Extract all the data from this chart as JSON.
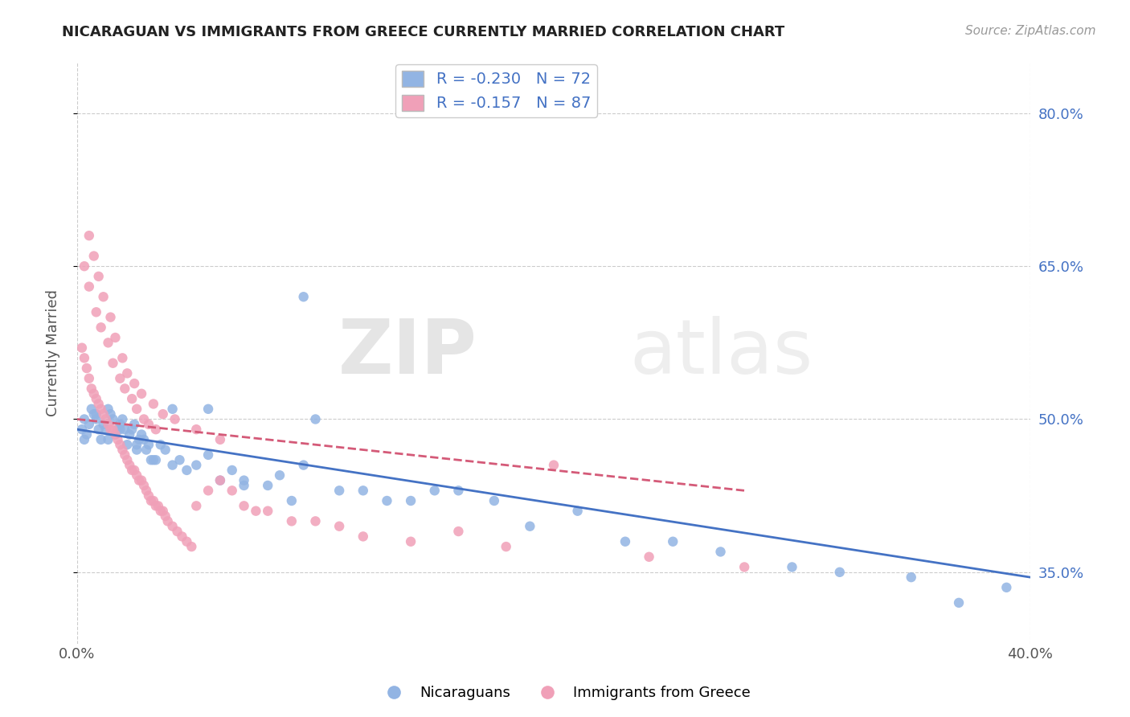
{
  "title": "NICARAGUAN VS IMMIGRANTS FROM GREECE CURRENTLY MARRIED CORRELATION CHART",
  "source_text": "Source: ZipAtlas.com",
  "ylabel": "Currently Married",
  "xmin": 0.0,
  "xmax": 0.4,
  "ymin": 0.28,
  "ymax": 0.85,
  "yticks": [
    0.35,
    0.5,
    0.65,
    0.8
  ],
  "ytick_labels": [
    "35.0%",
    "50.0%",
    "65.0%",
    "80.0%"
  ],
  "blue_R": -0.23,
  "blue_N": 72,
  "pink_R": -0.157,
  "pink_N": 87,
  "blue_color": "#92b4e3",
  "pink_color": "#f0a0b8",
  "blue_line_color": "#4472c4",
  "pink_line_color": "#d45a78",
  "watermark_1": "ZIP",
  "watermark_2": "atlas",
  "legend_label_blue": "Nicaraguans",
  "legend_label_pink": "Immigrants from Greece",
  "blue_scatter_x": [
    0.002,
    0.003,
    0.004,
    0.005,
    0.006,
    0.007,
    0.008,
    0.009,
    0.01,
    0.011,
    0.012,
    0.013,
    0.014,
    0.015,
    0.016,
    0.017,
    0.018,
    0.019,
    0.02,
    0.021,
    0.022,
    0.023,
    0.024,
    0.025,
    0.026,
    0.027,
    0.028,
    0.029,
    0.03,
    0.031,
    0.033,
    0.035,
    0.037,
    0.04,
    0.043,
    0.046,
    0.05,
    0.055,
    0.06,
    0.065,
    0.07,
    0.08,
    0.085,
    0.09,
    0.095,
    0.1,
    0.11,
    0.12,
    0.13,
    0.14,
    0.15,
    0.16,
    0.175,
    0.19,
    0.21,
    0.23,
    0.25,
    0.27,
    0.3,
    0.32,
    0.35,
    0.37,
    0.39,
    0.003,
    0.008,
    0.013,
    0.018,
    0.025,
    0.032,
    0.04,
    0.055,
    0.07,
    0.095
  ],
  "blue_scatter_y": [
    0.49,
    0.5,
    0.485,
    0.495,
    0.51,
    0.505,
    0.5,
    0.49,
    0.48,
    0.495,
    0.49,
    0.51,
    0.505,
    0.5,
    0.485,
    0.49,
    0.495,
    0.5,
    0.49,
    0.475,
    0.485,
    0.49,
    0.495,
    0.475,
    0.48,
    0.485,
    0.48,
    0.47,
    0.475,
    0.46,
    0.46,
    0.475,
    0.47,
    0.455,
    0.46,
    0.45,
    0.455,
    0.465,
    0.44,
    0.45,
    0.44,
    0.435,
    0.445,
    0.42,
    0.455,
    0.5,
    0.43,
    0.43,
    0.42,
    0.42,
    0.43,
    0.43,
    0.42,
    0.395,
    0.41,
    0.38,
    0.38,
    0.37,
    0.355,
    0.35,
    0.345,
    0.32,
    0.335,
    0.48,
    0.505,
    0.48,
    0.49,
    0.47,
    0.46,
    0.51,
    0.51,
    0.435,
    0.62
  ],
  "pink_scatter_x": [
    0.002,
    0.003,
    0.004,
    0.005,
    0.006,
    0.007,
    0.008,
    0.009,
    0.01,
    0.011,
    0.012,
    0.013,
    0.014,
    0.015,
    0.016,
    0.017,
    0.018,
    0.019,
    0.02,
    0.021,
    0.022,
    0.023,
    0.024,
    0.025,
    0.026,
    0.027,
    0.028,
    0.029,
    0.03,
    0.031,
    0.032,
    0.033,
    0.034,
    0.035,
    0.036,
    0.037,
    0.038,
    0.04,
    0.042,
    0.044,
    0.046,
    0.048,
    0.05,
    0.055,
    0.06,
    0.065,
    0.07,
    0.075,
    0.08,
    0.09,
    0.1,
    0.11,
    0.12,
    0.14,
    0.16,
    0.18,
    0.2,
    0.24,
    0.28,
    0.003,
    0.005,
    0.008,
    0.01,
    0.013,
    0.015,
    0.018,
    0.02,
    0.023,
    0.025,
    0.028,
    0.03,
    0.033,
    0.005,
    0.007,
    0.009,
    0.011,
    0.014,
    0.016,
    0.019,
    0.021,
    0.024,
    0.027,
    0.032,
    0.036,
    0.041,
    0.05,
    0.06
  ],
  "pink_scatter_y": [
    0.57,
    0.56,
    0.55,
    0.54,
    0.53,
    0.525,
    0.52,
    0.515,
    0.51,
    0.505,
    0.5,
    0.495,
    0.49,
    0.49,
    0.485,
    0.48,
    0.475,
    0.47,
    0.465,
    0.46,
    0.455,
    0.45,
    0.45,
    0.445,
    0.44,
    0.44,
    0.435,
    0.43,
    0.425,
    0.42,
    0.42,
    0.415,
    0.415,
    0.41,
    0.41,
    0.405,
    0.4,
    0.395,
    0.39,
    0.385,
    0.38,
    0.375,
    0.415,
    0.43,
    0.44,
    0.43,
    0.415,
    0.41,
    0.41,
    0.4,
    0.4,
    0.395,
    0.385,
    0.38,
    0.39,
    0.375,
    0.455,
    0.365,
    0.355,
    0.65,
    0.63,
    0.605,
    0.59,
    0.575,
    0.555,
    0.54,
    0.53,
    0.52,
    0.51,
    0.5,
    0.495,
    0.49,
    0.68,
    0.66,
    0.64,
    0.62,
    0.6,
    0.58,
    0.56,
    0.545,
    0.535,
    0.525,
    0.515,
    0.505,
    0.5,
    0.49,
    0.48
  ],
  "blue_line_x": [
    0.0,
    0.4
  ],
  "blue_line_y": [
    0.49,
    0.345
  ],
  "pink_line_x": [
    0.0,
    0.28
  ],
  "pink_line_y": [
    0.5,
    0.43
  ]
}
